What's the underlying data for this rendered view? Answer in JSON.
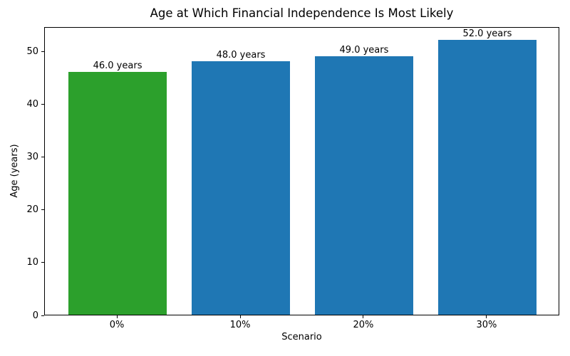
{
  "chart_data": {
    "type": "bar",
    "title": "Age at Which Financial Independence Is Most Likely",
    "xlabel": "Scenario",
    "ylabel": "Age (years)",
    "categories": [
      "0%",
      "10%",
      "20%",
      "30%"
    ],
    "values": [
      46.0,
      48.0,
      49.0,
      52.0
    ],
    "bar_labels": [
      "46.0 years",
      "48.0 years",
      "49.0 years",
      "52.0 years"
    ],
    "bar_colors": [
      "#2ca02c",
      "#1f77b4",
      "#1f77b4",
      "#1f77b4"
    ],
    "yticks": [
      0,
      10,
      20,
      30,
      40,
      50
    ],
    "ylim": [
      0,
      54.6
    ],
    "bar_width_fraction": 0.8,
    "grid": false,
    "legend_position": "none"
  },
  "colors": {
    "highlight_green": "#2ca02c",
    "default_blue": "#1f77b4",
    "background": "#ffffff",
    "text": "#000000",
    "spine": "#000000"
  }
}
